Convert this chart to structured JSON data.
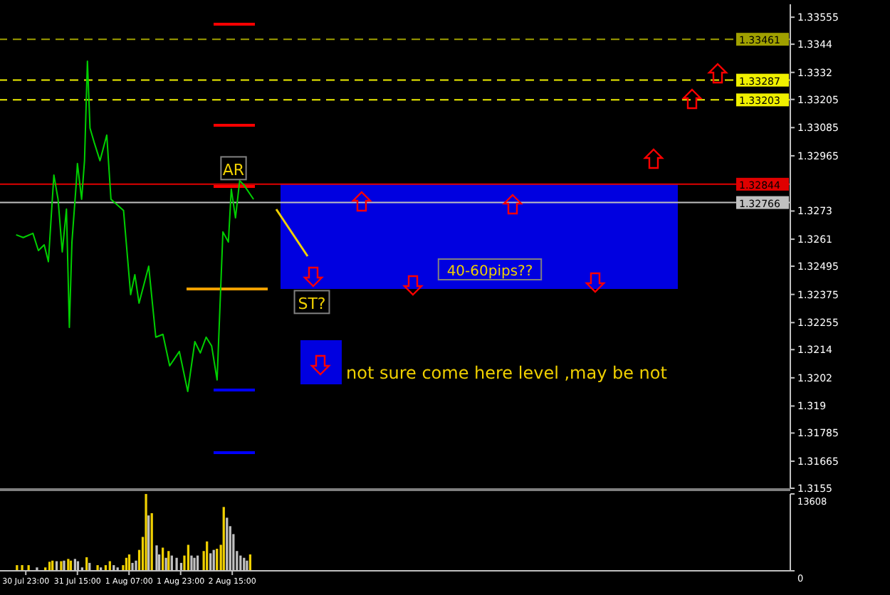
{
  "chart_data": [
    {
      "type": "line",
      "xlim": [
        "--07-30T15:00",
        "--08-09T20:00"
      ],
      "ylim": [
        1.3155,
        1.3361
      ],
      "yticks": [
        1.33555,
        1.3344,
        1.3332,
        1.33205,
        1.33085,
        1.32965,
        1.3273,
        1.3261,
        1.32495,
        1.32375,
        1.32255,
        1.3214,
        1.3202,
        1.319,
        1.31785,
        1.31665,
        1.3155
      ],
      "tick_labels": "y",
      "grid": false,
      "legend": false,
      "x": [
        "--07-30T20:00",
        "--07-30T22:12",
        "--07-31T01:12",
        "--07-31T02:54",
        "--07-31T04:42",
        "--07-31T06:00",
        "--07-31T06:48",
        "--07-31T07:42",
        "--07-31T09:00",
        "--07-31T10:18",
        "--07-31T11:36",
        "--07-31T12:30",
        "--07-31T13:18",
        "--07-31T14:36",
        "--07-31T15:00",
        "--07-31T16:18",
        "--07-31T17:12",
        "--07-31T18:06",
        "--07-31T18:54",
        "--07-31T20:12",
        "--07-31T22:00",
        "--08-01T00:06",
        "--08-01T01:24",
        "--08-01T05:18",
        "--08-01T07:30",
        "--08-01T08:48",
        "--08-01T10:06",
        "--08-01T13:06",
        "--08-01T15:18",
        "--08-01T17:30",
        "--08-01T19:36",
        "--08-01T22:36",
        "--08-02T01:12",
        "--08-02T03:24",
        "--08-02T05:06",
        "--08-02T06:54",
        "--08-02T08:36",
        "--08-02T10:18",
        "--08-02T12:06",
        "--08-02T13:48",
        "--08-02T14:42",
        "--08-02T16:00",
        "--08-02T17:18",
        "--08-02T18:36",
        "--08-02T21:36"
      ],
      "series": [
        {
          "color": "#00d000",
          "values": [
            1.32629,
            1.32617,
            1.32635,
            1.32562,
            1.32586,
            1.32514,
            1.32689,
            1.32883,
            1.3278,
            1.32556,
            1.32738,
            1.32235,
            1.32598,
            1.32841,
            1.32932,
            1.3278,
            1.32944,
            1.33368,
            1.33083,
            1.33022,
            1.32944,
            1.33053,
            1.3278,
            1.32732,
            1.32374,
            1.32459,
            1.32338,
            1.32495,
            1.32193,
            1.32205,
            1.32071,
            1.32132,
            1.31962,
            1.32174,
            1.32126,
            1.32193,
            1.32156,
            1.32011,
            1.32641,
            1.32598,
            1.32823,
            1.32701,
            1.32859,
            1.32841,
            1.3278
          ]
        }
      ],
      "ref_lines": [
        {
          "axis": "y",
          "value": 1.33461,
          "label": "1.33461",
          "color": "#a0a000",
          "line_style": "dashed"
        },
        {
          "axis": "y",
          "value": 1.33287,
          "label": "1.33287",
          "color": "#f0f000",
          "line_style": "dashed"
        },
        {
          "axis": "y",
          "value": 1.33203,
          "label": "1.33203",
          "color": "#f0f000",
          "line_style": "dashed"
        },
        {
          "axis": "y",
          "value": 1.32844,
          "label": "1.32844",
          "color": "#e00000",
          "line_style": "solid"
        },
        {
          "axis": "y",
          "value": 1.32766,
          "label": "1.32766",
          "color": "#c0c0c0",
          "line_style": "solid"
        }
      ],
      "annotations": [
        "AR",
        "ST?",
        "40-60pips??",
        "not sure come here level ,may be not"
      ]
    },
    {
      "type": "bar",
      "xlim": [
        "--07-30T15:00",
        "--08-09T20:00"
      ],
      "ylim": [
        0,
        13608
      ],
      "yticks": [
        13608,
        0
      ],
      "grid": false,
      "legend": false,
      "xticks": [
        {
          "value": "--07-30T23:00",
          "label": "30 Jul 23:00"
        },
        {
          "value": "--07-31T15:00",
          "label": "31 Jul 15:00"
        },
        {
          "value": "--08-01T07:00",
          "label": "1 Aug 07:00"
        },
        {
          "value": "--08-01T23:00",
          "label": "1 Aug 23:00"
        },
        {
          "value": "--08-02T15:00",
          "label": "2 Aug 15:00"
        }
      ],
      "x": [
        "--07-30T20:18",
        "--07-30T21:54",
        "--07-30T23:54",
        "--07-31T02:30",
        "--07-31T05:06",
        "--07-31T06:24",
        "--07-31T07:18",
        "--07-31T08:36",
        "--07-31T10:00",
        "--07-31T10:54",
        "--07-31T12:12",
        "--07-31T13:00",
        "--07-31T14:18",
        "--07-31T15:12",
        "--07-31T16:30",
        "--07-31T17:54",
        "--07-31T18:48",
        "--07-31T21:18",
        "--07-31T22:18",
        "--07-31T23:48",
        "--08-01T01:06",
        "--08-01T02:18",
        "--08-01T03:30",
        "--08-01T05:12",
        "--08-01T06:12",
        "--08-01T07:06",
        "--08-01T08:06",
        "--08-01T09:12",
        "--08-01T10:12",
        "--08-01T11:18",
        "--08-01T12:18",
        "--08-01T13:06",
        "--08-01T14:06",
        "--08-01T15:36",
        "--08-01T16:24",
        "--08-01T17:30",
        "--08-01T18:30",
        "--08-01T19:18",
        "--08-01T20:18",
        "--08-01T21:48",
        "--08-01T23:12",
        "--08-02T00:12",
        "--08-02T01:24",
        "--08-02T02:24",
        "--08-02T03:18",
        "--08-02T04:18",
        "--08-02T06:12",
        "--08-02T07:12",
        "--08-02T08:18",
        "--08-02T09:18",
        "--08-02T10:18",
        "--08-02T11:30",
        "--08-02T12:24",
        "--08-02T13:24",
        "--08-02T14:24",
        "--08-02T15:24",
        "--08-02T16:30",
        "--08-02T17:36",
        "--08-02T18:42",
        "--08-02T19:36",
        "--08-02T20:36"
      ],
      "values": [
        1000,
        1000,
        1000,
        600,
        600,
        1600,
        1800,
        1700,
        1700,
        1800,
        2100,
        1800,
        2100,
        1700,
        600,
        2400,
        1400,
        1000,
        600,
        1000,
        1700,
        1000,
        600,
        1000,
        2300,
        2900,
        1400,
        1800,
        3700,
        6000,
        13600,
        9800,
        10200,
        4500,
        2900,
        4100,
        2300,
        3500,
        2700,
        2300,
        1400,
        2700,
        4600,
        2700,
        2300,
        2700,
        3500,
        5200,
        3100,
        3700,
        3900,
        4600,
        11300,
        9400,
        7900,
        6500,
        3500,
        2700,
        2300,
        1800,
        2900
      ],
      "colors": [
        "#f0d000",
        "#f0d000",
        "#f0d000",
        "#c0c0c0",
        "#f0d000",
        "#f0d000",
        "#f0d000",
        "#c0c0c0",
        "#f0d000",
        "#c0c0c0",
        "#f0d000",
        "#f0d000",
        "#c0c0c0",
        "#c0c0c0",
        "#c0c0c0",
        "#f0d000",
        "#c0c0c0",
        "#f0d000",
        "#c0c0c0",
        "#f0d000",
        "#f0d000",
        "#c0c0c0",
        "#c0c0c0",
        "#f0d000",
        "#f0d000",
        "#f0d000",
        "#c0c0c0",
        "#c0c0c0",
        "#f0d000",
        "#f0d000",
        "#f0d000",
        "#c0c0c0",
        "#f0d000",
        "#c0c0c0",
        "#c0c0c0",
        "#f0d000",
        "#c0c0c0",
        "#f0d000",
        "#c0c0c0",
        "#c0c0c0",
        "#c0c0c0",
        "#f0d000",
        "#f0d000",
        "#c0c0c0",
        "#c0c0c0",
        "#c0c0c0",
        "#f0d000",
        "#f0d000",
        "#c0c0c0",
        "#c0c0c0",
        "#f0d000",
        "#f0d000",
        "#f0d000",
        "#c0c0c0",
        "#c0c0c0",
        "#c0c0c0",
        "#c0c0c0",
        "#c0c0c0",
        "#c0c0c0",
        "#c0c0c0",
        "#f0d000"
      ]
    }
  ]
}
